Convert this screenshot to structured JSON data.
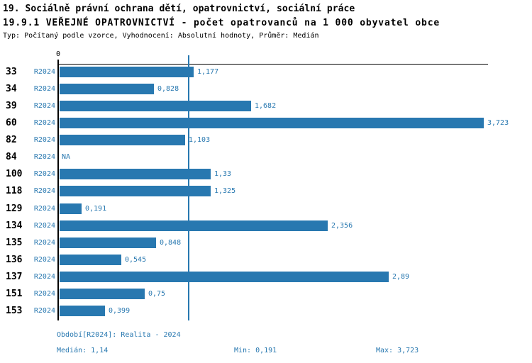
{
  "header": {
    "title_line1": "19. Sociálně právní ochrana dětí, opatrovnictví, sociální práce",
    "title_line2": "19.9.1 VEŘEJNÉ OPATROVNICTVÍ - počet opatrovanců na 1 000 obyvatel obce",
    "meta": "Typ: Počítaný podle vzorce, Vyhodnocení: Absolutní hodnoty, Průměr: Medián"
  },
  "chart_data": {
    "type": "bar",
    "orientation": "horizontal",
    "categories": [
      "33",
      "34",
      "39",
      "60",
      "82",
      "84",
      "100",
      "118",
      "129",
      "134",
      "135",
      "136",
      "137",
      "151",
      "153"
    ],
    "series_label": "R2024",
    "values": [
      1.177,
      0.828,
      1.682,
      3.723,
      1.103,
      null,
      1.33,
      1.325,
      0.191,
      2.356,
      0.848,
      0.545,
      2.89,
      0.75,
      0.399
    ],
    "value_labels": [
      "1,177",
      "0,828",
      "1,682",
      "3,723",
      "1,103",
      "NA",
      "1,33",
      "1,325",
      "0,191",
      "2,356",
      "0,848",
      "0,545",
      "2,89",
      "0,75",
      "0,399"
    ],
    "zero_tick_label": "0",
    "xlim": [
      0,
      3.77
    ],
    "median_value": 1.14,
    "bar_color": "#2878b0",
    "median_line_color": "#2878b0",
    "grid": false,
    "legend": "none"
  },
  "footer": {
    "period_info": "Období[R2024]: Realita - 2024",
    "median": "Medián: 1,14",
    "min": "Min: 0,191",
    "max": "Max: 3,723"
  }
}
